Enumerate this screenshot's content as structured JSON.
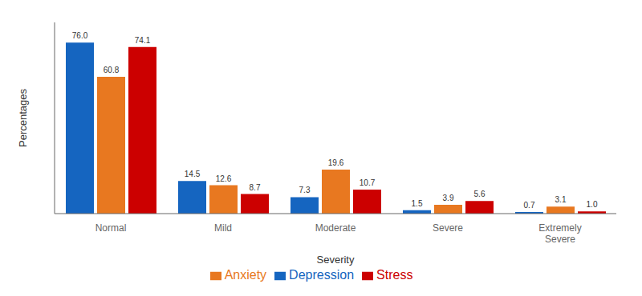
{
  "chart_data": {
    "type": "bar",
    "categories": [
      "Normal",
      "Mild",
      "Moderate",
      "Severe",
      "Extremely\nSevere"
    ],
    "series": [
      {
        "name": "Depression",
        "color": "#1565C0",
        "values": [
          76.0,
          14.5,
          7.3,
          1.5,
          0.7
        ],
        "value_labels": [
          "76.0",
          "14.5",
          "7.3",
          "1.5",
          "0.7"
        ]
      },
      {
        "name": "Anxiety",
        "color": "#E87820",
        "values": [
          60.8,
          12.6,
          19.6,
          3.9,
          3.1
        ],
        "value_labels": [
          "60.8",
          "12.6",
          "19.6",
          "3.9",
          "3.1"
        ]
      },
      {
        "name": "Stress",
        "color": "#CC0000",
        "values": [
          74.1,
          8.7,
          10.7,
          5.6,
          1.0
        ],
        "value_labels": [
          "74.1",
          "8.7",
          "10.7",
          "5.6",
          "1.0"
        ]
      }
    ],
    "xlabel": "Severity",
    "ylabel": "Percentages",
    "ylim": [
      0,
      85
    ],
    "grid": false,
    "legend": "bottom",
    "data_labels": true,
    "tick_labels": "x"
  }
}
